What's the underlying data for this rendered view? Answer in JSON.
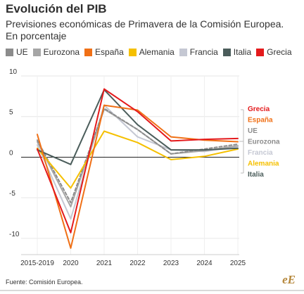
{
  "title": "Evolución del PIB",
  "subtitle": "Previsiones económicas de Primavera de la Comisión Europea. En porcentaje",
  "source": "Fuente: Comisión Europea.",
  "logo": "eE",
  "chart_data": {
    "type": "line",
    "categories": [
      "2015-2019",
      "2020",
      "2021",
      "2022",
      "2023",
      "2024",
      "2025"
    ],
    "ylim": [
      -12,
      10
    ],
    "yticks": [
      10,
      5,
      0,
      -5,
      -10
    ],
    "ytick_labels": [
      "10",
      "5",
      "0",
      "-5",
      "-10"
    ],
    "grid": true,
    "legend_position": "top",
    "end_labels_position": "right",
    "series": [
      {
        "name": "UE",
        "color": "#8c8c8c",
        "dashed": true,
        "values": [
          2.1,
          -5.6,
          6.0,
          3.4,
          0.4,
          1.0,
          1.6
        ]
      },
      {
        "name": "Eurozona",
        "color": "#a6a6a6",
        "dashed": false,
        "values": [
          1.9,
          -6.1,
          5.9,
          3.4,
          0.4,
          0.8,
          1.4
        ]
      },
      {
        "name": "España",
        "color": "#f07016",
        "dashed": false,
        "values": [
          2.8,
          -11.2,
          6.4,
          5.8,
          2.5,
          2.1,
          1.9
        ]
      },
      {
        "name": "Alemania",
        "color": "#f5c000",
        "dashed": false,
        "values": [
          1.1,
          -3.8,
          3.2,
          1.8,
          -0.3,
          0.1,
          1.0
        ]
      },
      {
        "name": "Francia",
        "color": "#c5c8d3",
        "dashed": false,
        "values": [
          1.5,
          -7.6,
          6.4,
          2.5,
          0.9,
          0.7,
          1.3
        ]
      },
      {
        "name": "Italia",
        "color": "#4b5d5b",
        "dashed": false,
        "values": [
          0.9,
          -0.9,
          8.3,
          4.0,
          0.9,
          0.9,
          1.1
        ]
      },
      {
        "name": "Grecia",
        "color": "#e41a1c",
        "dashed": false,
        "values": [
          1.0,
          -9.3,
          8.4,
          5.6,
          2.0,
          2.2,
          2.3
        ]
      }
    ],
    "end_labels": [
      {
        "text": "Grecia",
        "color": "#e41a1c"
      },
      {
        "text": "España",
        "color": "#f07016"
      },
      {
        "text": "UE",
        "color": "#8c8c8c"
      },
      {
        "text": "Eurozona",
        "color": "#8c8c8c"
      },
      {
        "text": "Francia",
        "color": "#c5c8d3"
      },
      {
        "text": "Alemania",
        "color": "#f5c000"
      },
      {
        "text": "Italia",
        "color": "#4b5d5b"
      }
    ]
  }
}
